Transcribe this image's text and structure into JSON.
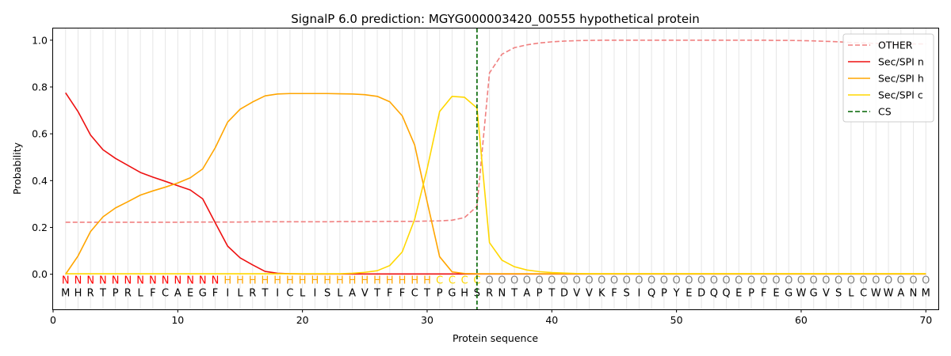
{
  "chart_data": {
    "type": "line",
    "title": "SignalP 6.0 prediction: MGYG000003420_00555 hypothetical protein",
    "xlabel": "Protein sequence",
    "ylabel": "Probability",
    "xlim": [
      0,
      71
    ],
    "ylim": [
      -0.15,
      1.05
    ],
    "xticks": [
      0,
      10,
      20,
      30,
      40,
      50,
      60,
      70
    ],
    "yticks": [
      0.0,
      0.2,
      0.4,
      0.6,
      0.8,
      1.0
    ],
    "grid": "vertical lines at each residue",
    "legend_position": "top-right",
    "sequence": "MHRTPRLFCAEGFILRTICLISLAVTFFCTPGHSRNTAPTDVVKFSIQPYEDQQEPFEGWGVSLCWWANM",
    "region_labels": "NNNNNNNNNNNNNHHHHHHHHHHHHHHHHHCCCCOOOOOOOOOOOOOOOOOOOOOOOOOOOOOOOOOOOO",
    "region_colors": {
      "N": "#ff0000",
      "H": "#ffa500",
      "C": "#ffd700",
      "O": "#808080"
    },
    "cleavage_site": 34,
    "series": [
      {
        "name": "OTHER",
        "color": "#f08080",
        "dash": true,
        "values": [
          0.222,
          0.222,
          0.222,
          0.222,
          0.222,
          0.222,
          0.222,
          0.222,
          0.222,
          0.222,
          0.223,
          0.223,
          0.223,
          0.223,
          0.223,
          0.224,
          0.224,
          0.224,
          0.224,
          0.224,
          0.224,
          0.224,
          0.225,
          0.225,
          0.225,
          0.225,
          0.226,
          0.226,
          0.226,
          0.227,
          0.228,
          0.231,
          0.242,
          0.29,
          0.86,
          0.94,
          0.968,
          0.98,
          0.988,
          0.993,
          0.996,
          0.998,
          0.999,
          1.0,
          1.0,
          1.0,
          1.0,
          1.0,
          1.0,
          1.0,
          1.0,
          1.0,
          1.0,
          1.0,
          1.0,
          1.0,
          1.0,
          0.999,
          0.999,
          0.998,
          0.997,
          0.995,
          0.993,
          0.99,
          0.988,
          0.986,
          0.985,
          0.984,
          0.984,
          0.984
        ]
      },
      {
        "name": "Sec/SPI n",
        "color": "#ee1111",
        "dash": false,
        "values": [
          0.775,
          0.695,
          0.595,
          0.532,
          0.495,
          0.465,
          0.435,
          0.415,
          0.397,
          0.378,
          0.36,
          0.322,
          0.22,
          0.12,
          0.07,
          0.04,
          0.012,
          0.004,
          0.002,
          0.001,
          0.001,
          0.001,
          0.001,
          0.001,
          0.001,
          0.001,
          0.001,
          0.001,
          0.001,
          0.001,
          0.001,
          0.001,
          0.001,
          0.001,
          0.001,
          0.001,
          0.001,
          0.001,
          0.001,
          0.001,
          0.001,
          0.001,
          0.001,
          0.001,
          0.001,
          0.001,
          0.001,
          0.001,
          0.001,
          0.001,
          0.001,
          0.001,
          0.001,
          0.001,
          0.001,
          0.001,
          0.001,
          0.001,
          0.001,
          0.001,
          0.001,
          0.001,
          0.001,
          0.001,
          0.001,
          0.001,
          0.001,
          0.001,
          0.001,
          0.001
        ]
      },
      {
        "name": "Sec/SPI h",
        "color": "#ffa500",
        "dash": false,
        "values": [
          0.0,
          0.078,
          0.182,
          0.245,
          0.283,
          0.31,
          0.338,
          0.356,
          0.372,
          0.39,
          0.412,
          0.45,
          0.54,
          0.65,
          0.705,
          0.736,
          0.762,
          0.77,
          0.772,
          0.772,
          0.772,
          0.772,
          0.771,
          0.77,
          0.767,
          0.76,
          0.737,
          0.677,
          0.552,
          0.31,
          0.075,
          0.01,
          0.003,
          0.002,
          0.002,
          0.002,
          0.002,
          0.002,
          0.002,
          0.002,
          0.002,
          0.002,
          0.002,
          0.002,
          0.002,
          0.002,
          0.002,
          0.002,
          0.002,
          0.002,
          0.002,
          0.002,
          0.002,
          0.002,
          0.002,
          0.002,
          0.002,
          0.002,
          0.002,
          0.002,
          0.002,
          0.002,
          0.002,
          0.002,
          0.002,
          0.002,
          0.002,
          0.002,
          0.002,
          0.002
        ]
      },
      {
        "name": "Sec/SPI c",
        "color": "#ffd700",
        "dash": false,
        "values": [
          0.002,
          0.002,
          0.002,
          0.002,
          0.002,
          0.002,
          0.002,
          0.002,
          0.002,
          0.002,
          0.002,
          0.002,
          0.002,
          0.002,
          0.002,
          0.002,
          0.002,
          0.002,
          0.002,
          0.002,
          0.002,
          0.002,
          0.002,
          0.004,
          0.008,
          0.015,
          0.037,
          0.095,
          0.235,
          0.45,
          0.695,
          0.76,
          0.756,
          0.71,
          0.135,
          0.06,
          0.032,
          0.018,
          0.011,
          0.007,
          0.005,
          0.003,
          0.002,
          0.002,
          0.002,
          0.002,
          0.002,
          0.002,
          0.002,
          0.002,
          0.002,
          0.002,
          0.002,
          0.002,
          0.002,
          0.002,
          0.002,
          0.002,
          0.002,
          0.002,
          0.002,
          0.002,
          0.002,
          0.002,
          0.002,
          0.002,
          0.002,
          0.002,
          0.002,
          0.002
        ]
      }
    ],
    "legend": [
      {
        "label": "OTHER",
        "color": "#f08080",
        "dash": true
      },
      {
        "label": "Sec/SPI n",
        "color": "#ee1111",
        "dash": false
      },
      {
        "label": "Sec/SPI h",
        "color": "#ffa500",
        "dash": false
      },
      {
        "label": "Sec/SPI c",
        "color": "#ffd700",
        "dash": false
      },
      {
        "label": "CS",
        "color": "#006400",
        "dash": true
      }
    ]
  }
}
